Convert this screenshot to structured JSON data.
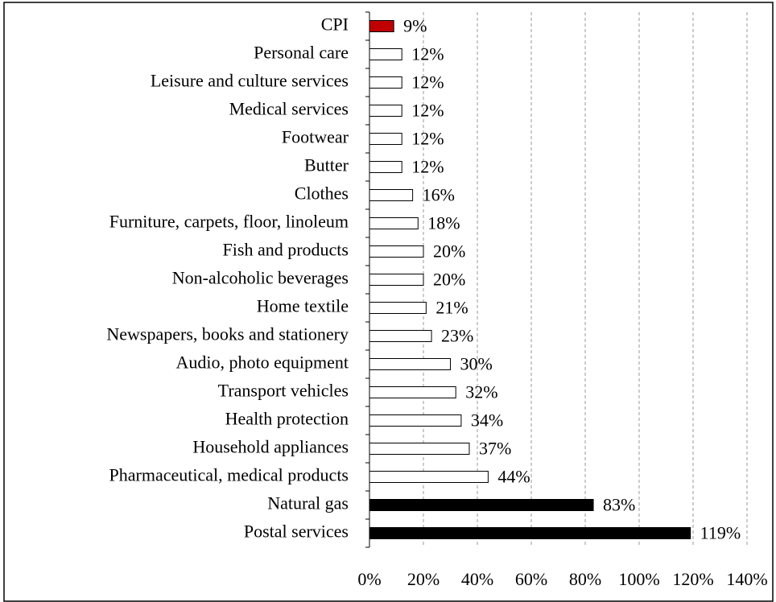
{
  "chart_data": {
    "type": "bar",
    "orientation": "horizontal",
    "categories": [
      "CPI",
      "Personal care",
      "Leisure and culture services",
      "Medical services",
      "Footwear",
      "Butter",
      "Clothes",
      "Furniture, carpets, floor, linoleum",
      "Fish and products",
      "Non-alcoholic beverages",
      "Home textile",
      "Newspapers, books and stationery",
      "Audio, photo equipment",
      "Transport vehicles",
      "Health protection",
      "Household appliances",
      "Pharmaceutical, medical products",
      "Natural gas",
      "Postal services"
    ],
    "values": [
      9,
      12,
      12,
      12,
      12,
      12,
      16,
      18,
      20,
      20,
      21,
      23,
      30,
      32,
      34,
      37,
      44,
      83,
      119
    ],
    "value_labels": [
      "9%",
      "12%",
      "12%",
      "12%",
      "12%",
      "12%",
      "16%",
      "18%",
      "20%",
      "20%",
      "21%",
      "23%",
      "30%",
      "32%",
      "34%",
      "37%",
      "44%",
      "83%",
      "119%"
    ],
    "colors": [
      "#c00000",
      "#ffffff",
      "#ffffff",
      "#ffffff",
      "#ffffff",
      "#ffffff",
      "#ffffff",
      "#ffffff",
      "#ffffff",
      "#ffffff",
      "#ffffff",
      "#ffffff",
      "#ffffff",
      "#ffffff",
      "#ffffff",
      "#ffffff",
      "#ffffff",
      "#000000",
      "#000000"
    ],
    "xlim": [
      0,
      140
    ],
    "xticks": [
      {
        "value": 0,
        "label": "0%"
      },
      {
        "value": 20,
        "label": "20%"
      },
      {
        "value": 40,
        "label": "40%"
      },
      {
        "value": 60,
        "label": "60%"
      },
      {
        "value": 80,
        "label": "80%"
      },
      {
        "value": 100,
        "label": "100%"
      },
      {
        "value": 120,
        "label": "120%"
      },
      {
        "value": 140,
        "label": "140%"
      }
    ],
    "grid": true
  }
}
